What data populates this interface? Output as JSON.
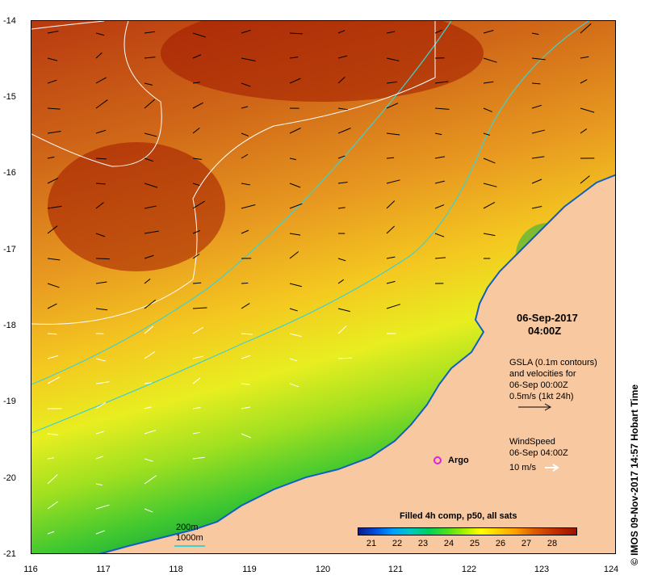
{
  "map": {
    "y_ticks": [
      "-14",
      "-15",
      "-16",
      "-17",
      "-18",
      "-19",
      "-20",
      "-21"
    ],
    "x_ticks": [
      "116",
      "117",
      "118",
      "119",
      "120",
      "121",
      "122",
      "123",
      "124"
    ],
    "lon_range": [
      116,
      124
    ],
    "lat_range": [
      -21,
      -14
    ],
    "colors": {
      "land": "#f8c8a0",
      "contour_200m": "#ffffff",
      "contour_1000m": "#40d0d0",
      "argo": "#e020e0"
    }
  },
  "annotation": {
    "date": "06-Sep-2017",
    "time": "04:00Z",
    "gsla_line1": "GSLA (0.1m contours)",
    "gsla_line2": "and velocities for",
    "gsla_line3": "06-Sep 00:00Z",
    "gsla_line4": "0.5m/s (1kt 24h)",
    "wind_line1": "WindSpeed",
    "wind_line2": "06-Sep 04:00Z",
    "wind_line3": "10 m/s"
  },
  "argo": {
    "label": "Argo"
  },
  "depth_legend": {
    "d200": "200m",
    "d1000": "1000m"
  },
  "colorbar": {
    "title": "Filled 4h comp, p50, all sats",
    "ticks": [
      "21",
      "22",
      "23",
      "24",
      "25",
      "26",
      "27",
      "28"
    ],
    "range": [
      20.5,
      28.5
    ]
  },
  "credit": "© IMOS 09-Nov-2017 14:57 Hobart Time"
}
